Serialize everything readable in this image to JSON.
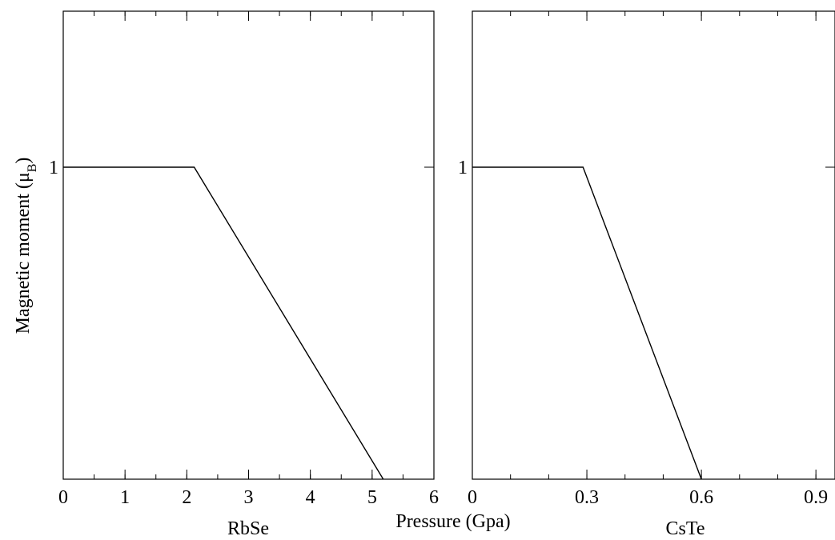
{
  "figure": {
    "ylabel": "Magnetic moment (μ",
    "ylabel_sub": "B",
    "ylabel_close": ")",
    "xlabel": "Pressure (Gpa)"
  },
  "chart_data": [
    {
      "type": "line",
      "title": "RbSe",
      "xlabel": "Pressure (Gpa)",
      "ylabel": "Magnetic moment (μB)",
      "xlim": [
        0,
        6
      ],
      "ylim": [
        0,
        1.5
      ],
      "x_ticks": [
        0,
        1,
        2,
        3,
        4,
        5,
        6
      ],
      "x_tick_labels": [
        "0",
        "1",
        "2",
        "3",
        "4",
        "5",
        "6"
      ],
      "x_minor_step": 0.5,
      "y_ticks": [
        1
      ],
      "y_tick_labels": [
        "1"
      ],
      "grid": false,
      "series": [
        {
          "x": [
            0,
            2.12,
            5.18
          ],
          "y": [
            1,
            1,
            0
          ]
        }
      ]
    },
    {
      "type": "line",
      "title": "CsTe",
      "xlabel": "Pressure (Gpa)",
      "ylabel": "Magnetic moment (μB)",
      "xlim": [
        0,
        0.95
      ],
      "ylim": [
        0,
        1.5
      ],
      "x_ticks": [
        0,
        0.3,
        0.6,
        0.9
      ],
      "x_tick_labels": [
        "0",
        "0.3",
        "0.6",
        "0.9"
      ],
      "x_minor_step": 0.1,
      "y_ticks": [
        1
      ],
      "y_tick_labels": [
        "1"
      ],
      "grid": false,
      "series": [
        {
          "x": [
            0,
            0.29,
            0.6
          ],
          "y": [
            1,
            1,
            0
          ]
        }
      ]
    }
  ]
}
